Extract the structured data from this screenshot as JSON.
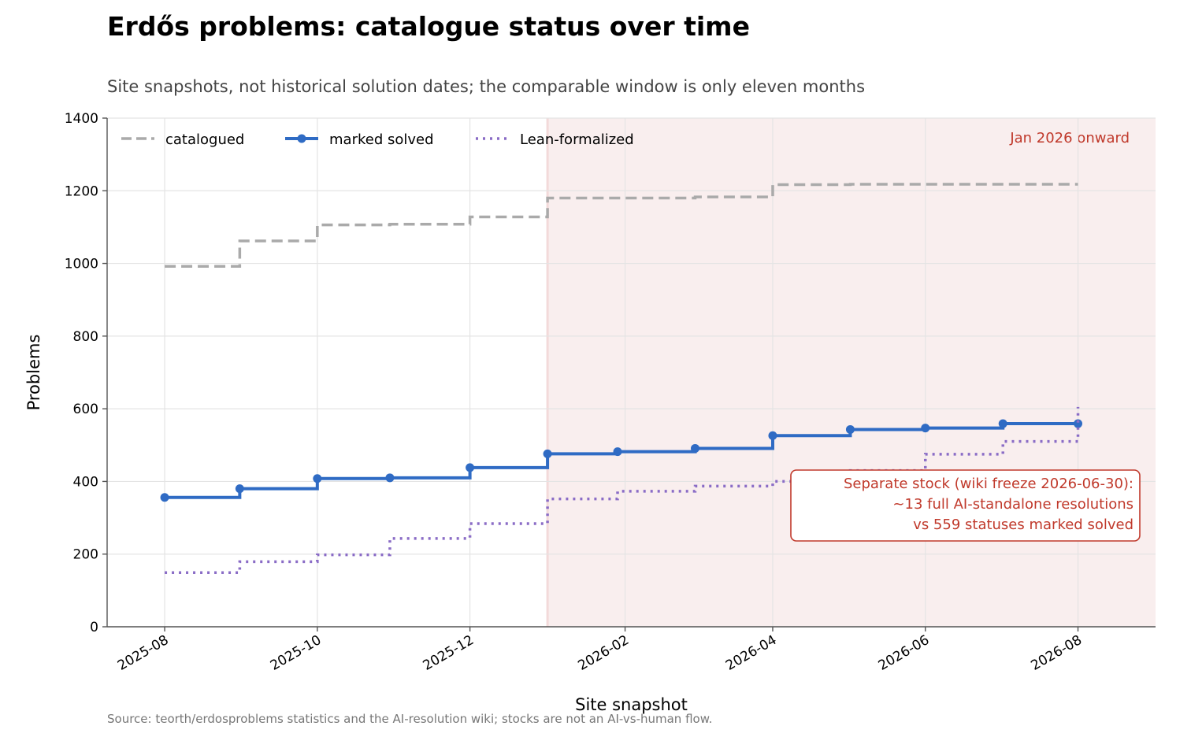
{
  "title": "Erdős problems: catalogue status over time",
  "subtitle": "Site snapshots, not historical solution dates; the comparable window is only eleven months",
  "source": "Source: teorth/erdosproblems statistics and the AI-resolution wiki; stocks are not an AI-vs-human flow.",
  "colors": {
    "catalogued": "#aaaaaa",
    "marked_solved": "#2f6bc4",
    "lean_formalized": "#8a6cc6",
    "shade": "#f9eeee",
    "annotation": "#c0392b"
  },
  "chart_data": {
    "type": "line",
    "step": "post",
    "xlabel": "Site snapshot",
    "ylabel": "Problems",
    "xlim": [
      "2025-07-09",
      "2026-09-01"
    ],
    "ylim": [
      0,
      1400
    ],
    "x_ticks": [
      "2025-08",
      "2025-10",
      "2025-12",
      "2026-02",
      "2026-04",
      "2026-06",
      "2026-08"
    ],
    "y_ticks": [
      0,
      200,
      400,
      600,
      800,
      1000,
      1200,
      1400
    ],
    "grid": true,
    "legend_position": "top-left",
    "shaded_region": {
      "from": "2026-01-01",
      "label": "Jan 2026 onward"
    },
    "annotation": {
      "lines": [
        "Separate stock (wiki freeze 2026-06-30):",
        "~13 full AI-standalone resolutions",
        "vs 559 statuses marked solved"
      ]
    },
    "series": [
      {
        "name": "catalogued",
        "style": "dashed",
        "points": [
          [
            "2025-08-01",
            992
          ],
          [
            "2025-08-31",
            1062
          ],
          [
            "2025-10-01",
            1106
          ],
          [
            "2025-10-30",
            1108
          ],
          [
            "2025-12-01",
            1128
          ],
          [
            "2026-01-01",
            1180
          ],
          [
            "2026-01-29",
            1180
          ],
          [
            "2026-03-01",
            1183
          ],
          [
            "2026-04-01",
            1217
          ],
          [
            "2026-05-02",
            1218
          ],
          [
            "2026-06-01",
            1218
          ],
          [
            "2026-07-02",
            1218
          ],
          [
            "2026-08-01",
            1218
          ]
        ]
      },
      {
        "name": "marked solved",
        "style": "solid-markers",
        "points": [
          [
            "2025-08-01",
            356
          ],
          [
            "2025-08-31",
            380
          ],
          [
            "2025-10-01",
            408
          ],
          [
            "2025-10-30",
            410
          ],
          [
            "2025-12-01",
            438
          ],
          [
            "2026-01-01",
            476
          ],
          [
            "2026-01-29",
            482
          ],
          [
            "2026-03-01",
            491
          ],
          [
            "2026-04-01",
            526
          ],
          [
            "2026-05-02",
            543
          ],
          [
            "2026-06-01",
            547
          ],
          [
            "2026-07-02",
            559
          ],
          [
            "2026-08-01",
            559
          ]
        ]
      },
      {
        "name": "Lean-formalized",
        "style": "dotted",
        "points": [
          [
            "2025-08-01",
            149
          ],
          [
            "2025-08-31",
            179
          ],
          [
            "2025-10-01",
            198
          ],
          [
            "2025-10-30",
            243
          ],
          [
            "2025-12-01",
            284
          ],
          [
            "2026-01-01",
            352
          ],
          [
            "2026-01-29",
            373
          ],
          [
            "2026-03-01",
            387
          ],
          [
            "2026-04-01",
            400
          ],
          [
            "2026-05-02",
            430
          ],
          [
            "2026-06-01",
            475
          ],
          [
            "2026-07-02",
            510
          ],
          [
            "2026-08-01",
            605
          ]
        ]
      }
    ]
  }
}
